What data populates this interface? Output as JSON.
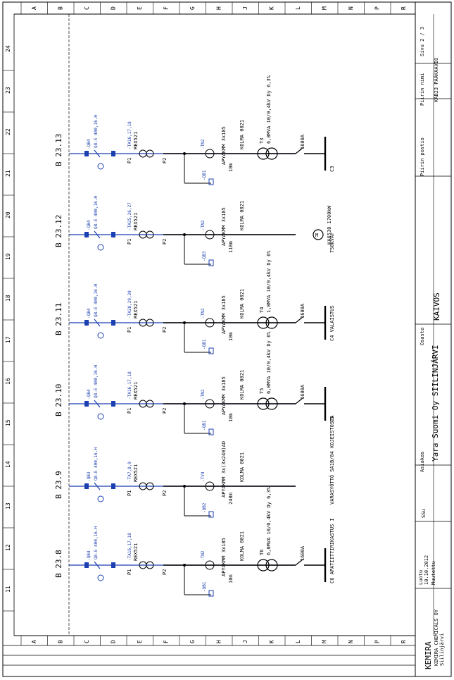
{
  "grid": {
    "letters": [
      "A",
      "B",
      "C",
      "D",
      "E",
      "F",
      "G",
      "H",
      "J",
      "K",
      "L",
      "M",
      "N",
      "P",
      "R"
    ],
    "numbers": [
      "24",
      "23",
      "22",
      "21",
      "20",
      "19",
      "18",
      "17",
      "16",
      "15",
      "14",
      "13",
      "12",
      "11"
    ]
  },
  "feeders": [
    {
      "id": "B 23.13",
      "qb": "-QB4",
      "breaker": "Q8-E 400,16.H",
      "ta": "-TA16,17,18",
      "qc": "-QB1",
      "qtn": "-TN2",
      "cable": "APYAKMM 3x185",
      "length": "10m",
      "tr_name": "T3",
      "tr_spec": "6,0MVA 10/0,4kV Dy 6,3%",
      "fuse": "1600A",
      "out": "C3",
      "rel": "REX521",
      "rel2": "KOLMA 0021"
    },
    {
      "id": "B 23.12",
      "qb": "-QB4",
      "breaker": "Q8-E 400,16.H",
      "ta": "-TA25,26,27",
      "qc": "-QB3",
      "qtn": "-TN2",
      "cable": "APYAKMM 3x185",
      "length": "110m",
      "tr_name": "M",
      "tr_spec": "KA6530 1700kW",
      "fuse": "",
      "out": "750kVAr",
      "rel": "REX521",
      "rel2": "KOLMA 0021"
    },
    {
      "id": "B 23.11",
      "qb": "-QB4",
      "breaker": "Q8-E 400,16.H",
      "ta": "-TA28,29,30",
      "qc": "-QB1",
      "qtn": "-TN2",
      "cable": "APYAKMM 3x185",
      "length": "10m",
      "tr_name": "T4",
      "tr_spec": "1,0MVA 10/0,4kV Dy 6%",
      "fuse": "1600A",
      "out": "C4 VALAISTUS",
      "rel": "REX521",
      "rel2": "KOLMA 0021"
    },
    {
      "id": "B 23.10",
      "qb": "-QB4",
      "breaker": "Q8-E 400,16.H",
      "ta": "-TA16,17,18",
      "qc": "-QB1",
      "qtn": "-TN2",
      "cable": "APYAKMM 3x185",
      "length": "10m",
      "tr_name": "T5",
      "tr_spec": "6,0MVA 10/0,4kV Dy 6%",
      "fuse": "1600A",
      "out": "C5",
      "rel": "REX521",
      "rel2": "KOLMA 0021"
    },
    {
      "id": "B 23.9",
      "qb": "-QB3",
      "breaker": "Q8-E 400,16.H",
      "ta": "-TA7,8,9",
      "qc": "-QB2",
      "qtn": "-TV4",
      "cable": "APYAKMM 3x(3x240)AD",
      "length": "240m",
      "tr_name": "",
      "tr_spec": "",
      "fuse": "",
      "out": "VARASYÖTTÖ SA1B/04 KOJEISTOSTA",
      "rel": "REX521",
      "rel2": "KOLMA 0021"
    },
    {
      "id": "B 23.8",
      "qb": "-QB4",
      "breaker": "Q8-E 400,16.H",
      "ta": "-TA16,17,18",
      "qc": "-QB1",
      "qtn": "-TN2",
      "cable": "APYAKMM 3x185",
      "length": "10m",
      "tr_name": "T6",
      "tr_spec": "6,0MVA 10/0,4kV Dy 6,3%",
      "fuse": "1600A",
      "out": "C6 APATIITTIRIKASTUS I",
      "rel": "REX521",
      "rel2": "KOLMA 0021"
    }
  ],
  "title_block": {
    "page_label": "Sivu 2 / 3",
    "drawing_name_label": "Piirin nimi",
    "drawing_name": "KAB23 PÄÄKAAVIO",
    "drawing_code_label": "Piirin postio",
    "content_label": "Osasto",
    "content": "KAIVOS",
    "client_label": "Asiakas",
    "client": "Yara Suomi Oy SIILINJÄRVI",
    "drawn_label": "SSu",
    "date_label": "Luotu",
    "date": "10.10.2012",
    "modified_label": "Muutettu",
    "company": "KEMIRA",
    "company_sub": "KEMIRA CHEMICALS OY",
    "company_loc": "Siilinjärvi",
    "p1": "P1",
    "p2": "P2"
  }
}
